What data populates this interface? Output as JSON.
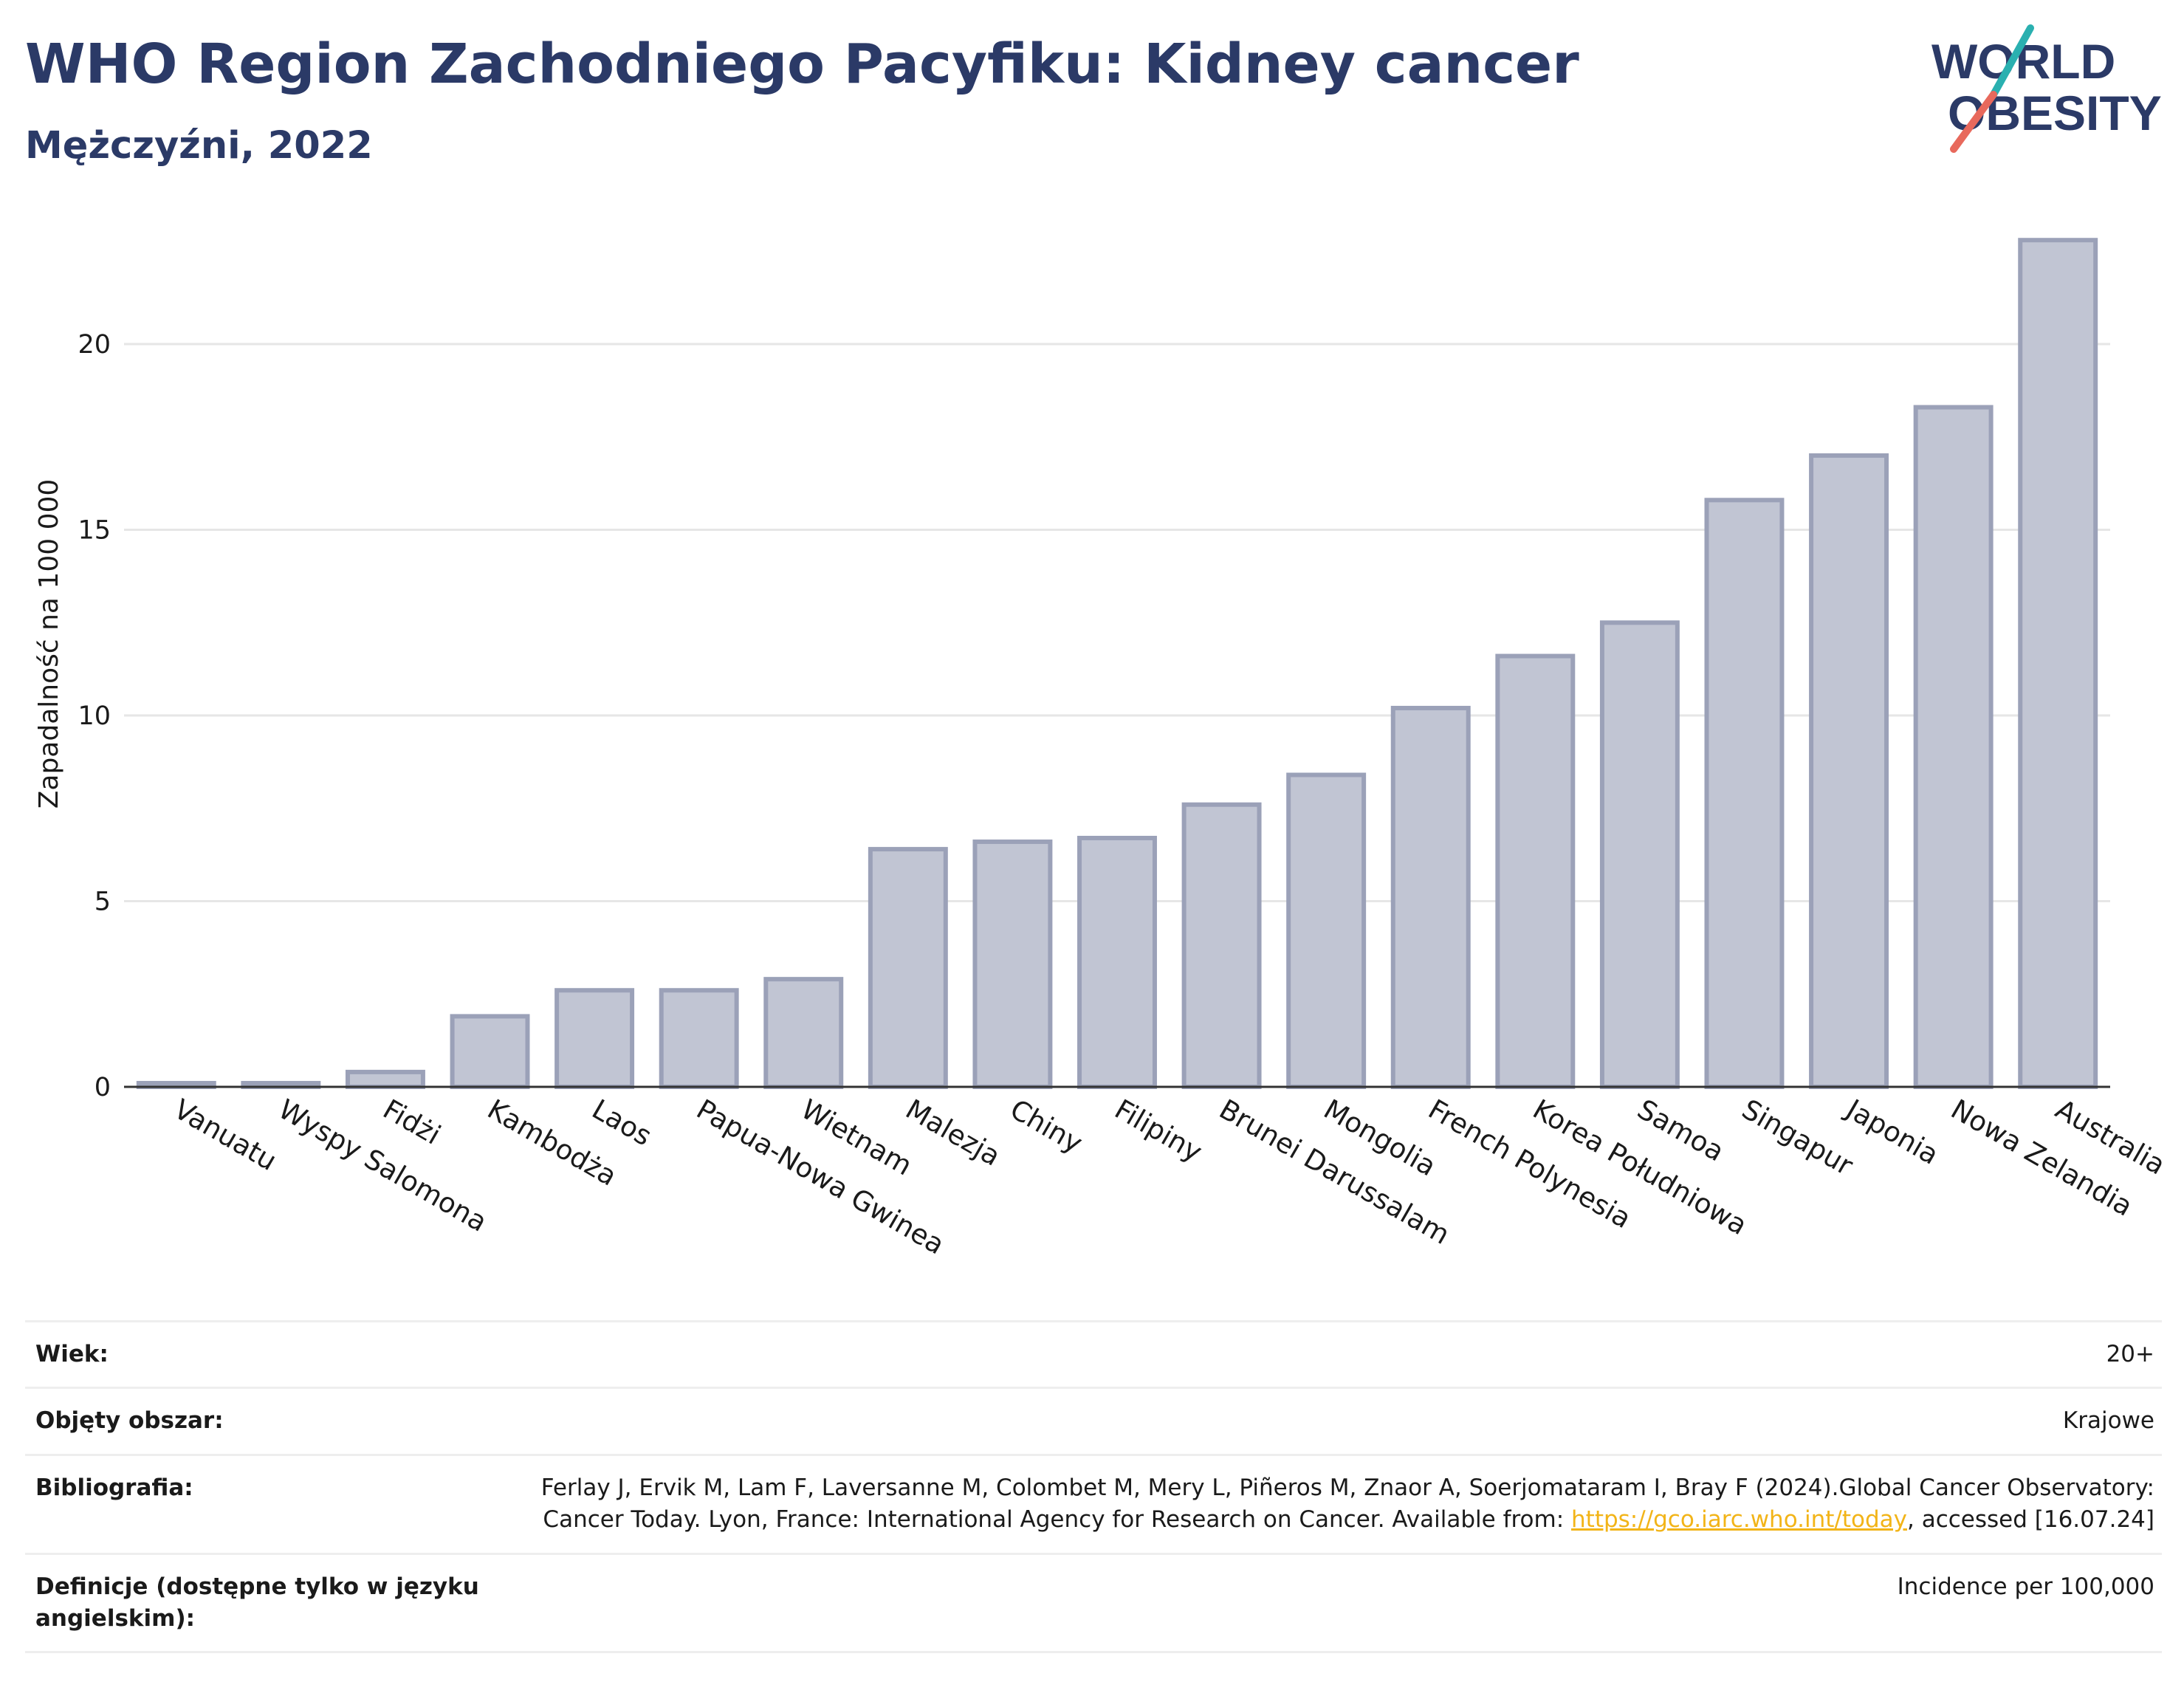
{
  "header": {
    "title": "WHO Region Zachodniego Pacyfiku: Kidney cancer",
    "subtitle": "Mężczyźni, 2022"
  },
  "logo": {
    "line1": "WORLD",
    "line2": "OBESITY",
    "colors": {
      "text": "#2b3a67",
      "slash_top": "#2ab0b0",
      "slash_bottom": "#e8695c"
    }
  },
  "colors": {
    "bar_fill": "#c1c5d3",
    "bar_stroke": "#9ba1b8",
    "axis": "#333333",
    "grid": "#e6e6e6",
    "title": "#2b3a67",
    "link": "#f2b418"
  },
  "chart_data": {
    "type": "bar",
    "title": "WHO Region Zachodniego Pacyfiku: Kidney cancer",
    "subtitle": "Mężczyźni, 2022",
    "ylabel": "Zapadalność na 100 000",
    "xlabel": "",
    "ylim": [
      0,
      23.5
    ],
    "yticks": [
      0,
      5,
      10,
      15,
      20
    ],
    "grid": true,
    "categories": [
      "Vanuatu",
      "Wyspy Salomona",
      "Fidżi",
      "Kambodża",
      "Laos",
      "Papua-Nowa Gwinea",
      "Wietnam",
      "Malezja",
      "Chiny",
      "Filipiny",
      "Brunei Darussalam",
      "Mongolia",
      "French Polynesia",
      "Korea Południowa",
      "Samoa",
      "Singapur",
      "Japonia",
      "Nowa Zelandia",
      "Australia"
    ],
    "values": [
      0.1,
      0.1,
      0.4,
      1.9,
      2.6,
      2.6,
      2.9,
      6.4,
      6.6,
      6.7,
      7.6,
      8.4,
      10.2,
      11.6,
      12.5,
      15.8,
      17.0,
      18.3,
      22.8
    ]
  },
  "meta": {
    "rows": [
      {
        "key": "Wiek:",
        "value": "20+"
      },
      {
        "key": "Objęty obszar:",
        "value": "Krajowe"
      },
      {
        "key": "Bibliografia:",
        "value_pre": "Ferlay J, Ervik M, Lam F, Laversanne M, Colombet M, Mery L, Piñeros M, Znaor A, Soerjomataram I, Bray F (2024).Global Cancer Observatory: Cancer Today. Lyon, France: International Agency for Research on Cancer. Available from: ",
        "link": "https://gco.iarc.who.int/today",
        "value_post": ", accessed [16.07.24]"
      },
      {
        "key": "Definicje (dostępne tylko w języku angielskim):",
        "value": "Incidence per 100,000"
      }
    ]
  }
}
